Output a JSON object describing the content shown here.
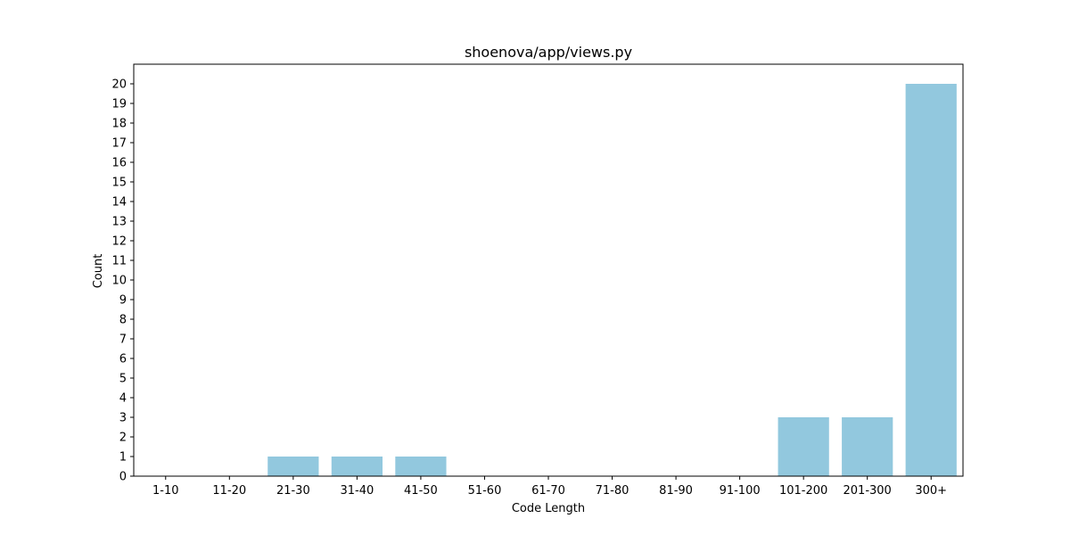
{
  "chart_data": {
    "type": "bar",
    "title": "shoenova/app/views.py",
    "xlabel": "Code Length",
    "ylabel": "Count",
    "categories": [
      "1-10",
      "11-20",
      "21-30",
      "31-40",
      "41-50",
      "51-60",
      "61-70",
      "71-80",
      "81-90",
      "91-100",
      "101-200",
      "201-300",
      "300+"
    ],
    "values": [
      0,
      0,
      1,
      1,
      1,
      0,
      0,
      0,
      0,
      0,
      3,
      3,
      20
    ],
    "ylim": [
      0,
      21
    ],
    "yticks": [
      0,
      1,
      2,
      3,
      4,
      5,
      6,
      7,
      8,
      9,
      10,
      11,
      12,
      13,
      14,
      15,
      16,
      17,
      18,
      19,
      20
    ],
    "grid": false,
    "bar_color": "#92c8de"
  }
}
